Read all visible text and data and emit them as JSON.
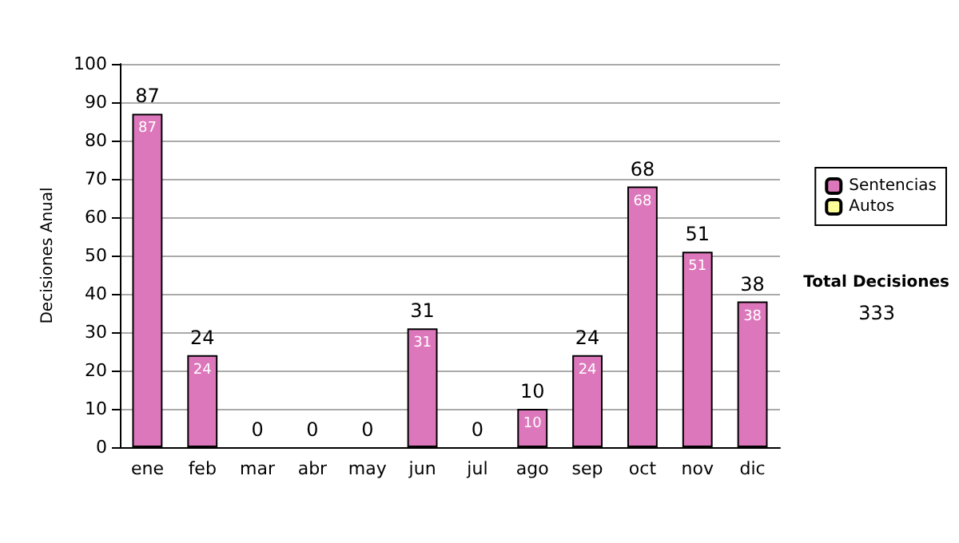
{
  "chart_data": {
    "type": "bar",
    "stacked": true,
    "ylabel": "Decisiones Anual",
    "categories": [
      "ene",
      "feb",
      "mar",
      "abr",
      "may",
      "jun",
      "jul",
      "ago",
      "sep",
      "oct",
      "nov",
      "dic"
    ],
    "series": [
      {
        "name": "Sentencias",
        "color": "#dd77bb",
        "values": [
          87,
          24,
          0,
          0,
          0,
          31,
          0,
          10,
          24,
          68,
          51,
          38
        ],
        "value_labels": [
          "87",
          "24",
          null,
          null,
          null,
          "31",
          null,
          "10",
          "24",
          "68",
          "51",
          "38"
        ]
      },
      {
        "name": "Autos",
        "color": "#ffff99",
        "values": [
          0,
          0,
          0,
          0,
          0,
          0,
          0,
          0,
          0,
          0,
          0,
          0
        ]
      }
    ],
    "totals": [
      "87",
      "24",
      "0",
      "0",
      "0",
      "31",
      "0",
      "10",
      "24",
      "68",
      "51",
      "38"
    ],
    "ylim": [
      0,
      100
    ],
    "yticks": [
      0,
      10,
      20,
      30,
      40,
      50,
      60,
      70,
      80,
      90,
      100
    ],
    "grid": "y",
    "legend": "right",
    "annotations": [
      "Total Decisiones",
      "333"
    ]
  }
}
